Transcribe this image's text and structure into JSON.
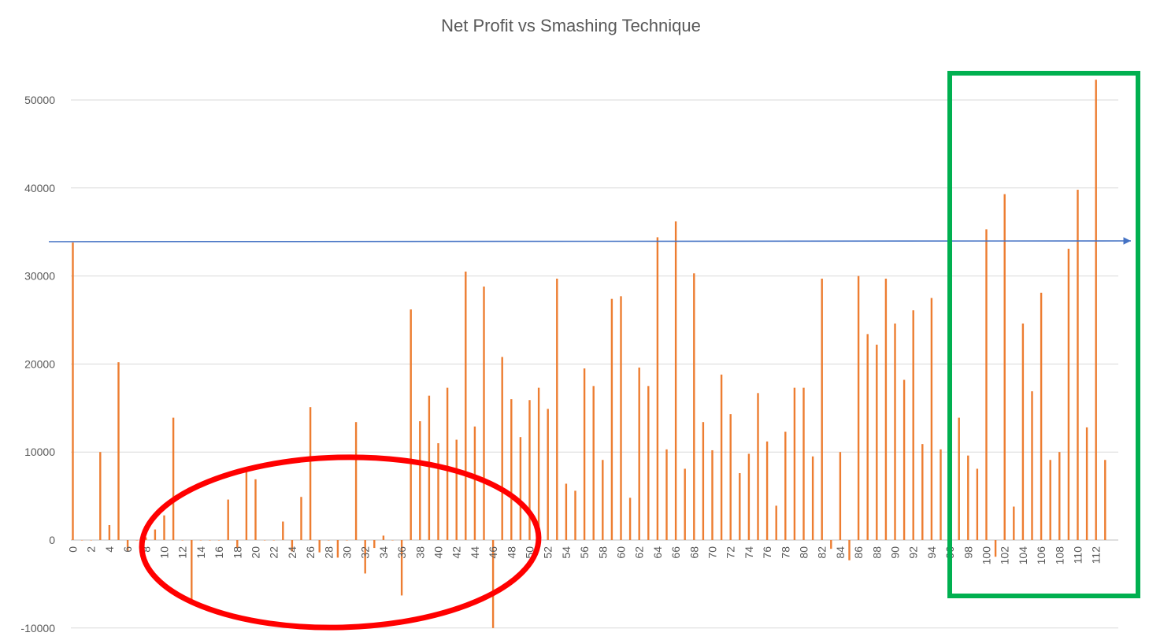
{
  "chart_data": {
    "type": "bar",
    "title": "Net Profit vs Smashing Technique",
    "xlabel": "",
    "ylabel": "",
    "ylim": [
      -10000,
      50000
    ],
    "y_ticks": [
      -10000,
      0,
      10000,
      20000,
      30000,
      40000,
      50000
    ],
    "grid": true,
    "legend": "none",
    "x_tick_step": 2,
    "colors": {
      "bars": "#ed7d31",
      "gridline": "#d9d9d9",
      "reference_line": "#4472c4",
      "circle": "#ff0000",
      "box": "#00b050"
    },
    "categories": [
      0,
      1,
      2,
      3,
      4,
      5,
      6,
      7,
      8,
      9,
      10,
      11,
      12,
      13,
      14,
      15,
      16,
      17,
      18,
      19,
      20,
      21,
      22,
      23,
      24,
      25,
      26,
      27,
      28,
      29,
      30,
      31,
      32,
      33,
      34,
      35,
      36,
      37,
      38,
      39,
      40,
      41,
      42,
      43,
      44,
      45,
      46,
      47,
      48,
      49,
      50,
      51,
      52,
      53,
      54,
      55,
      56,
      57,
      58,
      59,
      60,
      61,
      62,
      63,
      64,
      65,
      66,
      67,
      68,
      69,
      70,
      71,
      72,
      73,
      74,
      75,
      76,
      77,
      78,
      79,
      80,
      81,
      82,
      83,
      84,
      85,
      86,
      87,
      88,
      89,
      90,
      91,
      92,
      93,
      94,
      95,
      96,
      97,
      98,
      99,
      100,
      101,
      102,
      103,
      104,
      105,
      106,
      107,
      108,
      109,
      110,
      111,
      112,
      113
    ],
    "values": [
      33800,
      0,
      0,
      10000,
      1700,
      20200,
      -1200,
      0,
      300,
      1200,
      2800,
      13900,
      0,
      -6800,
      0,
      0,
      0,
      4600,
      -900,
      8000,
      6900,
      0,
      0,
      2100,
      -1300,
      4900,
      15100,
      -1400,
      0,
      -2000,
      0,
      13400,
      -3800,
      -900,
      500,
      0,
      -6300,
      26200,
      13500,
      16400,
      11000,
      17300,
      11400,
      30500,
      12900,
      28800,
      -10000,
      20800,
      16000,
      11700,
      15900,
      17300,
      14900,
      29700,
      6400,
      5600,
      19500,
      17500,
      9100,
      27400,
      27700,
      4800,
      19600,
      17500,
      34400,
      10300,
      36200,
      8100,
      30300,
      13400,
      10200,
      18800,
      14300,
      7600,
      9800,
      16700,
      11200,
      3900,
      12300,
      17300,
      17300,
      9500,
      29700,
      -1000,
      10000,
      -2300,
      30000,
      23400,
      22200,
      29700,
      24600,
      18200,
      26100,
      10900,
      27500,
      10300,
      -1400,
      13900,
      9600,
      8100,
      35300,
      -1900,
      39300,
      3800,
      24600,
      16900,
      28100,
      9100,
      10000,
      33100,
      39800,
      12800,
      52300,
      9100
    ],
    "reference_line_y": 33900
  }
}
